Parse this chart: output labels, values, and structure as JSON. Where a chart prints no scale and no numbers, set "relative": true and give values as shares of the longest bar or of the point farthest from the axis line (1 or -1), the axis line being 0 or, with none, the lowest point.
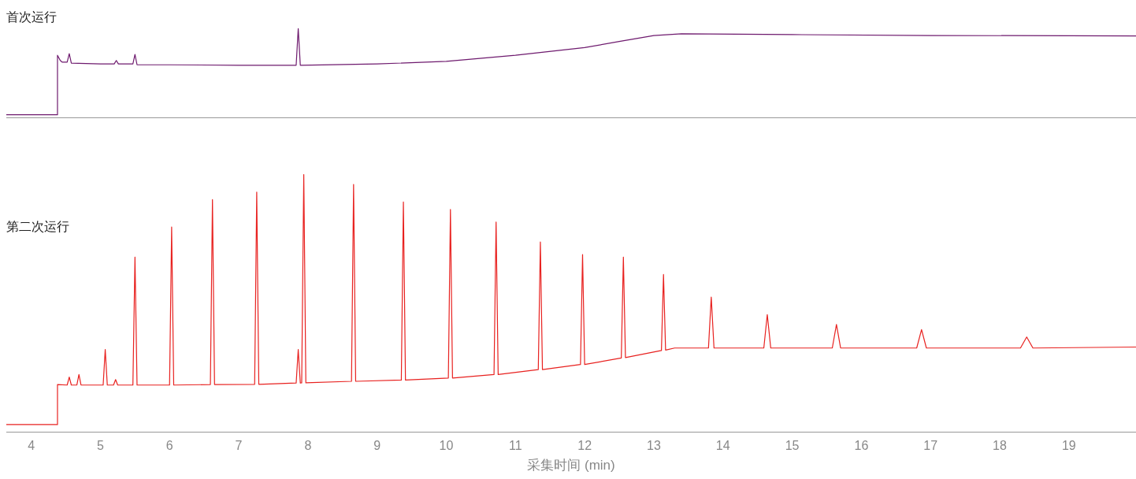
{
  "chart_data": [
    {
      "type": "line",
      "title": "首次运行",
      "relative": true,
      "tick_labels": false,
      "xlim": [
        3.64,
        19.97
      ],
      "xticks": [
        4,
        5,
        6,
        7,
        8,
        9,
        10,
        11,
        12,
        13,
        14,
        15,
        16,
        17,
        18,
        19
      ],
      "series": [
        {
          "color": "#6e1a6e",
          "x": [
            3.64,
            4.37,
            4.38,
            4.42,
            4.45,
            4.52,
            4.55,
            4.58,
            5.0,
            5.2,
            5.23,
            5.26,
            5.47,
            5.5,
            5.53,
            6.0,
            7.0,
            7.83,
            7.86,
            7.89,
            9.0,
            10.0,
            11.0,
            12.0,
            12.5,
            13.0,
            13.4,
            15.0,
            17.0,
            19.97
          ],
          "values": [
            0,
            0,
            0.69,
            0.63,
            0.61,
            0.61,
            0.71,
            0.6,
            0.59,
            0.59,
            0.63,
            0.59,
            0.59,
            0.7,
            0.58,
            0.58,
            0.575,
            0.575,
            1,
            0.575,
            0.59,
            0.62,
            0.69,
            0.78,
            0.85,
            0.92,
            0.94,
            0.93,
            0.92,
            0.915
          ]
        }
      ]
    },
    {
      "type": "line",
      "title": "第二次运行",
      "xlabel": "采集时间 (min)",
      "relative": true,
      "tick_labels": "x",
      "xlim": [
        3.64,
        19.97
      ],
      "xticks": [
        4,
        5,
        6,
        7,
        8,
        9,
        10,
        11,
        12,
        13,
        14,
        15,
        16,
        17,
        18,
        19
      ],
      "series": [
        {
          "color": "#e8211f",
          "x": [
            3.64,
            4.37,
            4.38,
            4.52,
            4.55,
            4.58,
            4.66,
            4.69,
            4.72,
            5.04,
            5.07,
            5.1,
            5.19,
            5.22,
            5.25,
            5.47,
            5.5,
            5.53,
            6.0,
            6.03,
            6.06,
            6.59,
            6.62,
            6.65,
            7.23,
            7.26,
            7.29,
            7.83,
            7.86,
            7.89,
            7.91,
            7.94,
            7.97,
            8.63,
            8.66,
            8.69,
            9.35,
            9.38,
            9.41,
            10.03,
            10.06,
            10.09,
            10.69,
            10.72,
            10.75,
            11.33,
            11.36,
            11.39,
            11.94,
            11.97,
            12.0,
            12.53,
            12.56,
            12.59,
            13.11,
            13.14,
            13.17,
            13.3,
            13.79,
            13.83,
            13.87,
            14.59,
            14.64,
            14.69,
            15.58,
            15.64,
            15.7,
            16.8,
            16.87,
            16.94,
            18.3,
            18.39,
            18.48,
            19.97
          ],
          "values": [
            0,
            0,
            0.16,
            0.158,
            0.19,
            0.158,
            0.158,
            0.2,
            0.158,
            0.158,
            0.3,
            0.158,
            0.158,
            0.18,
            0.158,
            0.158,
            0.67,
            0.158,
            0.158,
            0.79,
            0.158,
            0.16,
            0.9,
            0.16,
            0.161,
            0.93,
            0.161,
            0.166,
            0.3,
            0.166,
            0.167,
            1,
            0.167,
            0.173,
            0.96,
            0.173,
            0.178,
            0.89,
            0.178,
            0.186,
            0.86,
            0.186,
            0.2,
            0.81,
            0.2,
            0.22,
            0.73,
            0.22,
            0.24,
            0.68,
            0.24,
            0.266,
            0.67,
            0.268,
            0.296,
            0.6,
            0.298,
            0.306,
            0.306,
            0.51,
            0.306,
            0.306,
            0.44,
            0.306,
            0.306,
            0.4,
            0.306,
            0.306,
            0.38,
            0.306,
            0.306,
            0.35,
            0.306,
            0.31
          ]
        }
      ]
    }
  ]
}
